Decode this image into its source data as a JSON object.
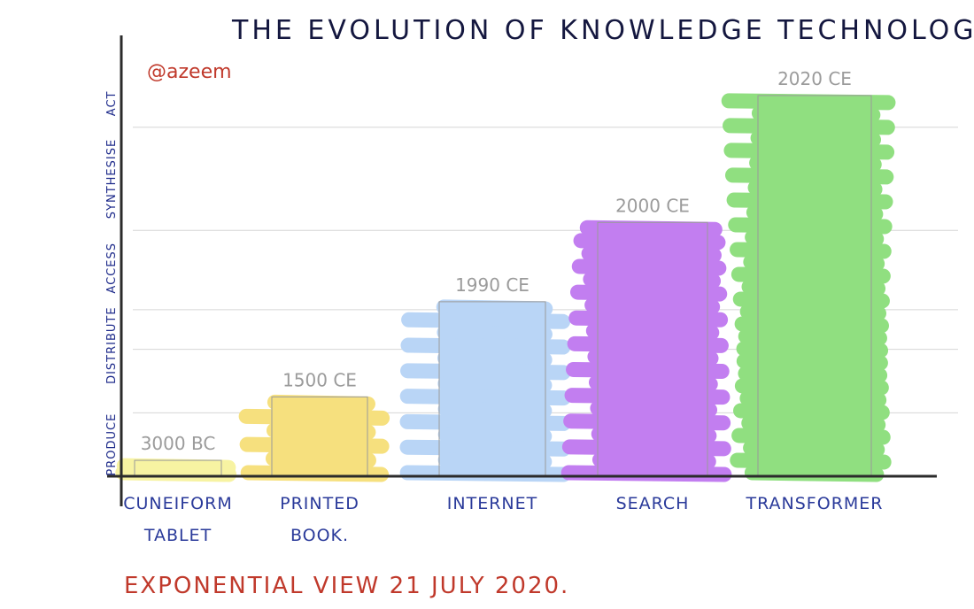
{
  "chart_data": {
    "type": "bar",
    "title": "THE EVOLUTION OF KNOWLEDGE TECHNOLOGIES",
    "annotation": "@azeem",
    "footer": "EXPONENTIAL VIEW 21 JULY 2020.",
    "y_categories": [
      "PRODUCE",
      "DISTRIBUTE",
      "ACCESS",
      "SYNTHESISE",
      "ACT"
    ],
    "ylim": [
      0,
      5
    ],
    "grid": true,
    "categories": [
      [
        "CUNEIFORM",
        "TABLET"
      ],
      [
        "PRINTED",
        "BOOK."
      ],
      [
        "INTERNET"
      ],
      [
        "SEARCH"
      ],
      [
        "TRANSFORMER"
      ]
    ],
    "values": [
      0.2,
      1.0,
      2.2,
      3.2,
      4.8
    ],
    "data_labels": [
      "3000 BC",
      "1500 CE",
      "1990 CE",
      "2000 CE",
      "2020 CE"
    ],
    "colors": [
      "#f7f3a2",
      "#f6e07e",
      "#b9d5f6",
      "#c27ef0",
      "#90df80"
    ]
  }
}
